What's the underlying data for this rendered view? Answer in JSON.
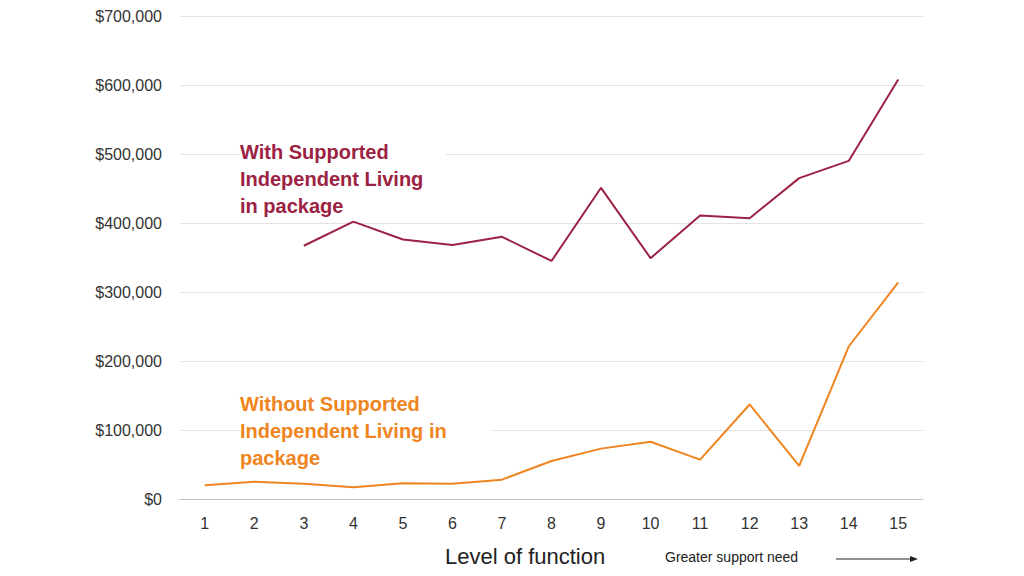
{
  "chart_data": {
    "type": "line",
    "x_label": "Level of function",
    "annotations": [
      "Greater support need"
    ],
    "categories": [
      1,
      2,
      3,
      4,
      5,
      6,
      7,
      8,
      9,
      10,
      11,
      12,
      13,
      14,
      15
    ],
    "series": [
      {
        "name": "With Supported Independent Living in package",
        "color": "#9b2243",
        "values": [
          null,
          null,
          367000,
          402000,
          376000,
          368000,
          380000,
          345000,
          451000,
          349000,
          411000,
          407000,
          465000,
          490000,
          608000
        ]
      },
      {
        "name": "Without Supported Independent Living in package",
        "color": "#ef8520",
        "values": [
          20000,
          25000,
          22000,
          17000,
          23000,
          22000,
          28000,
          55000,
          73000,
          83000,
          57000,
          137000,
          48000,
          221000,
          314000
        ]
      }
    ],
    "ylim": [
      0,
      700000
    ],
    "yticks": [
      {
        "value": 0,
        "label": "$0"
      },
      {
        "value": 100000,
        "label": "$100,000"
      },
      {
        "value": 200000,
        "label": "$200,000"
      },
      {
        "value": 300000,
        "label": "$300,000"
      },
      {
        "value": 400000,
        "label": "$400,000"
      },
      {
        "value": 500000,
        "label": "$500,000"
      },
      {
        "value": 600000,
        "label": "$600,000"
      },
      {
        "value": 700000,
        "label": "$700,000"
      }
    ],
    "grid": true
  }
}
